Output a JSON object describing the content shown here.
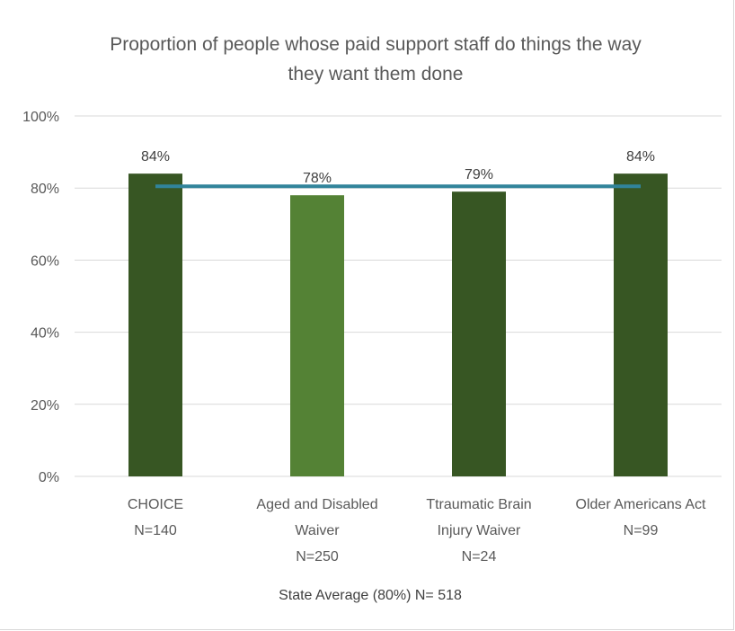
{
  "chart_data": {
    "type": "bar",
    "title_lines": [
      "Proportion of people whose paid support staff do things the way",
      "they want them done"
    ],
    "categories": [
      [
        "CHOICE",
        "N=140"
      ],
      [
        "Aged and Disabled",
        "Waiver",
        "N=250"
      ],
      [
        "Ttraumatic Brain",
        "Injury Waiver",
        "N=24"
      ],
      [
        "Older Americans Act",
        "N=99"
      ]
    ],
    "values": [
      84,
      78,
      79,
      84
    ],
    "data_labels": [
      "84%",
      "78%",
      "79%",
      "84%"
    ],
    "bar_colors": [
      "#375623",
      "#548235",
      "#375623",
      "#375623"
    ],
    "reference_line": {
      "value": 80.5,
      "color": "#31849b"
    },
    "ylim": [
      0,
      100
    ],
    "y_ticks": [
      {
        "value": 0,
        "label": "0%"
      },
      {
        "value": 20,
        "label": "20%"
      },
      {
        "value": 40,
        "label": "40%"
      },
      {
        "value": 60,
        "label": "60%"
      },
      {
        "value": 80,
        "label": "80%"
      },
      {
        "value": 100,
        "label": "100%"
      }
    ],
    "grid": true,
    "footnote": "State Average (80%) N= 518",
    "colors": {
      "grid": "#d9d9d9",
      "text": "#595959"
    }
  }
}
